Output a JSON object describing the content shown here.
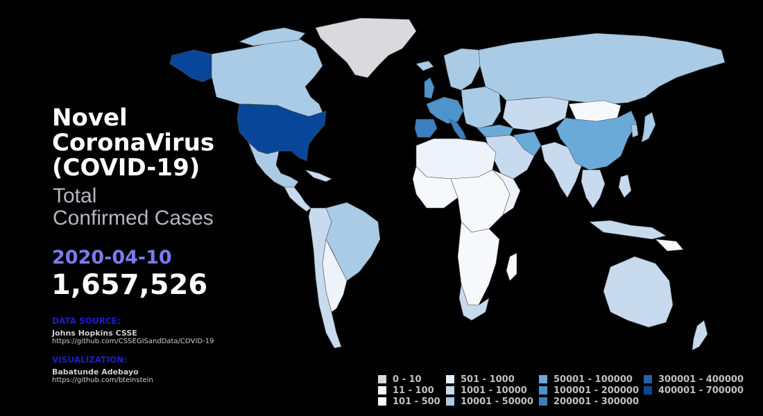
{
  "header": {
    "title_lines": [
      "Novel",
      "CoronaVirus",
      "(COVID-19)"
    ],
    "subtitle_lines": [
      "Total",
      "Confirmed Cases"
    ]
  },
  "stats": {
    "date": "2020-04-10",
    "total": "1,657,526"
  },
  "credits": {
    "source_heading": "DATA SOURCE:",
    "source_name": "Johns Hopkins CSSE",
    "source_url": "https://github.com/CSSEGISandData/COVID-19",
    "viz_heading": "VISUALIZATION:",
    "viz_name": "Babatunde Adebayo",
    "viz_url": "https://github.com/bteinstein"
  },
  "legend": {
    "items": [
      {
        "label": "0 - 10",
        "color": "#d9d9de"
      },
      {
        "label": "11 - 100",
        "color": "#eef2fa"
      },
      {
        "label": "101 - 500",
        "color": "#f6f8fc"
      },
      {
        "label": "501 - 1000",
        "color": "#e6eef8"
      },
      {
        "label": "1001 - 10000",
        "color": "#c7daee"
      },
      {
        "label": "10001 - 50000",
        "color": "#a9cbe6"
      },
      {
        "label": "50001 - 100000",
        "color": "#6aaad8"
      },
      {
        "label": "100001 - 200000",
        "color": "#4d94cc"
      },
      {
        "label": "200001 - 300000",
        "color": "#3a7fc0"
      },
      {
        "label": "300001 - 400000",
        "color": "#2163ab"
      },
      {
        "label": "400001 - 700000",
        "color": "#08469a"
      }
    ]
  }
}
